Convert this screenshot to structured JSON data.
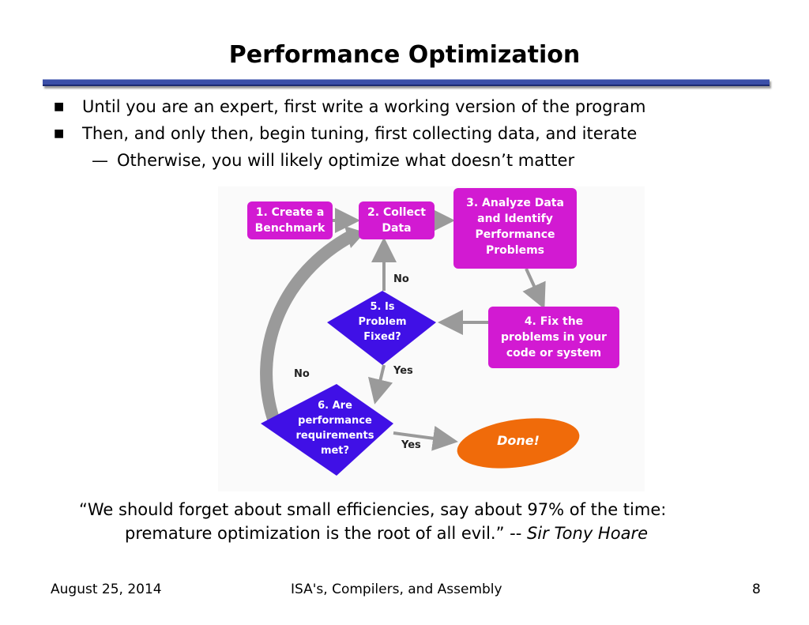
{
  "title": "Performance Optimization",
  "bullets": [
    "Until you are an expert, first write a working version of the program",
    "Then, and only then, begin tuning, first collecting data, and iterate"
  ],
  "sub_bullet": "Otherwise, you will likely optimize what doesn’t matter",
  "flowchart": {
    "step1": "1. Create a\nBenchmark",
    "step2": "2. Collect\nData",
    "step3": "3. Analyze Data\nand Identify\nPerformance\nProblems",
    "step4": "4. Fix the\nproblems in your\ncode or system",
    "step5": "5. Is\nProblem\nFixed?",
    "step6": "6. Are\nperformance\nrequirements\nmet?",
    "done": "Done!",
    "label_no_5": "No",
    "label_yes_5": "Yes",
    "label_no_6": "No",
    "label_yes_6": "Yes",
    "colors": {
      "magenta": "#d21ad2",
      "blue": "#4010e6",
      "orange": "#f06b0a",
      "arrow": "#9a9a9a"
    }
  },
  "quote": {
    "line1": "“We should forget about small efficiencies, say about 97% of the time:",
    "line2": "premature optimization is the root of all evil.” -- ",
    "author": "Sir Tony Hoare"
  },
  "footer": {
    "date": "August 25, 2014",
    "course": "ISA's, Compilers, and Assembly",
    "page": "8"
  }
}
